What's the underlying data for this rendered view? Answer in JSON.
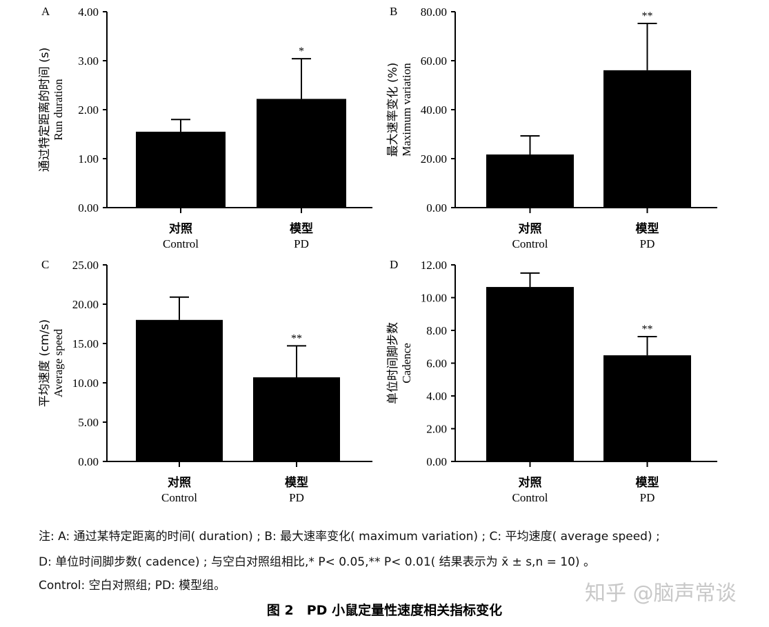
{
  "chart_data": [
    {
      "type": "bar",
      "panel": "A",
      "categories": [
        "对照",
        "模型"
      ],
      "category_sublabels": [
        "Control",
        "PD"
      ],
      "values": [
        1.55,
        2.22
      ],
      "error_upper": [
        1.8,
        3.04
      ],
      "significance": [
        "",
        "*"
      ],
      "ylabel": "通过特定距离的时间 (s)",
      "ylabel2": "Run duration",
      "ylim": [
        0,
        4
      ],
      "yticks": [
        "0.00",
        "1.00",
        "2.00",
        "3.00",
        "4.00"
      ],
      "bar_color": "#000000"
    },
    {
      "type": "bar",
      "panel": "B",
      "categories": [
        "对照",
        "模型"
      ],
      "category_sublabels": [
        "Control",
        "PD"
      ],
      "values": [
        21.7,
        56.1
      ],
      "error_upper": [
        29.3,
        75.2
      ],
      "significance": [
        "",
        "**"
      ],
      "ylabel": "最大速率变化 (%)",
      "ylabel2": "Maximum variation",
      "ylim": [
        0,
        80
      ],
      "yticks": [
        "0.00",
        "20.00",
        "40.00",
        "60.00",
        "80.00"
      ],
      "bar_color": "#000000"
    },
    {
      "type": "bar",
      "panel": "C",
      "categories": [
        "对照",
        "模型"
      ],
      "category_sublabels": [
        "Control",
        "PD"
      ],
      "values": [
        18.0,
        10.7
      ],
      "error_upper": [
        20.9,
        14.7
      ],
      "significance": [
        "",
        "**"
      ],
      "ylabel": "平均速度 (cm/s)",
      "ylabel2": "Average speed",
      "ylim": [
        0,
        25
      ],
      "yticks": [
        "0.00",
        "5.00",
        "10.00",
        "15.00",
        "20.00",
        "25.00"
      ],
      "bar_color": "#000000"
    },
    {
      "type": "bar",
      "panel": "D",
      "categories": [
        "对照",
        "模型"
      ],
      "category_sublabels": [
        "Control",
        "PD"
      ],
      "values": [
        10.65,
        6.48
      ],
      "error_upper": [
        11.5,
        7.62
      ],
      "significance": [
        "",
        "**"
      ],
      "ylabel": "单位时间脚步数",
      "ylabel2": "Cadence",
      "ylim": [
        0,
        12
      ],
      "yticks": [
        "0.00",
        "2.00",
        "4.00",
        "6.00",
        "8.00",
        "10.00",
        "12.00"
      ],
      "bar_color": "#000000"
    }
  ],
  "notes": [
    "注: A: 通过某特定距离的时间( duration) ; B: 最大速率变化( maximum variation) ; C: 平均速度( average speed) ;",
    "D: 单位时间脚步数( cadence) ; 与空白对照组相比,* P< 0.05,** P< 0.01( 结果表示为 x̄ ± s,n = 10) 。",
    "Control: 空白对照组; PD: 模型组。"
  ],
  "caption": "图 2　PD 小鼠定量性速度相关指标变化",
  "watermark": "知乎 @脑声常谈"
}
